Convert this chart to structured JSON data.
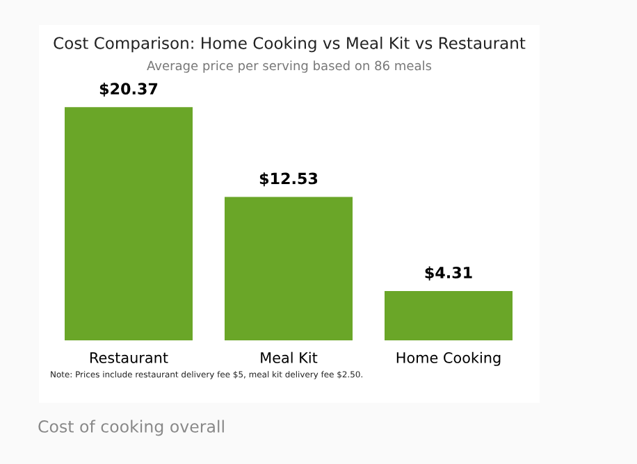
{
  "chart_data": {
    "type": "bar",
    "title": "Cost Comparison: Home Cooking vs Meal Kit vs Restaurant",
    "subtitle": "Average price per serving based on 86 meals",
    "categories": [
      "Restaurant",
      "Meal Kit",
      "Home Cooking"
    ],
    "values": [
      20.37,
      12.53,
      4.31
    ],
    "value_labels": [
      "$20.37",
      "$12.53",
      "$4.31"
    ],
    "color": "#6aa628",
    "annotations": [
      "Note: Prices include restaurant delivery fee $5, meal kit delivery fee $2.50.",
      "Cost of cooking overall"
    ]
  }
}
